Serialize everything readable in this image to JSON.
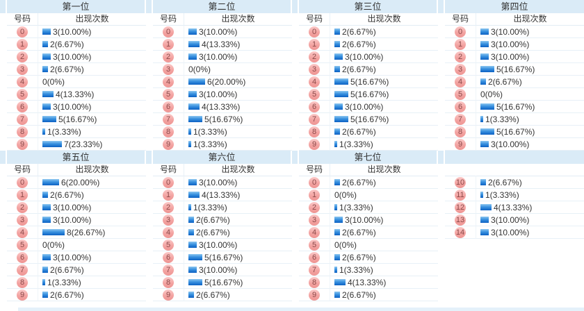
{
  "page": {
    "headers": {
      "number": "号码",
      "count": "出现次数"
    },
    "colors": {
      "band_blue": "#daebf7",
      "bar_blue": "#0b60c3",
      "ball_pink": "#f3a4a2",
      "ball_text": "#8c4a4a",
      "text": "#333333"
    },
    "sections": [
      {
        "id": "1",
        "title": "第一位",
        "show_headers": true,
        "rows": [
          {
            "n": "0",
            "v": 3,
            "t": "3(10.00%)"
          },
          {
            "n": "1",
            "v": 2,
            "t": "2(6.67%)"
          },
          {
            "n": "2",
            "v": 3,
            "t": "3(10.00%)"
          },
          {
            "n": "3",
            "v": 2,
            "t": "2(6.67%)"
          },
          {
            "n": "4",
            "v": 0,
            "t": "0(0%)"
          },
          {
            "n": "5",
            "v": 4,
            "t": "4(13.33%)"
          },
          {
            "n": "6",
            "v": 3,
            "t": "3(10.00%)"
          },
          {
            "n": "7",
            "v": 5,
            "t": "5(16.67%)"
          },
          {
            "n": "8",
            "v": 1,
            "t": "1(3.33%)"
          },
          {
            "n": "9",
            "v": 7,
            "t": "7(23.33%)"
          }
        ]
      },
      {
        "id": "2",
        "title": "第二位",
        "show_headers": true,
        "rows": [
          {
            "n": "0",
            "v": 3,
            "t": "3(10.00%)"
          },
          {
            "n": "1",
            "v": 4,
            "t": "4(13.33%)"
          },
          {
            "n": "2",
            "v": 3,
            "t": "3(10.00%)"
          },
          {
            "n": "3",
            "v": 0,
            "t": "0(0%)"
          },
          {
            "n": "4",
            "v": 6,
            "t": "6(20.00%)"
          },
          {
            "n": "5",
            "v": 3,
            "t": "3(10.00%)"
          },
          {
            "n": "6",
            "v": 4,
            "t": "4(13.33%)"
          },
          {
            "n": "7",
            "v": 5,
            "t": "5(16.67%)"
          },
          {
            "n": "8",
            "v": 1,
            "t": "1(3.33%)"
          },
          {
            "n": "9",
            "v": 1,
            "t": "1(3.33%)"
          }
        ]
      },
      {
        "id": "3",
        "title": "第三位",
        "show_headers": true,
        "rows": [
          {
            "n": "0",
            "v": 2,
            "t": "2(6.67%)"
          },
          {
            "n": "1",
            "v": 2,
            "t": "2(6.67%)"
          },
          {
            "n": "2",
            "v": 3,
            "t": "3(10.00%)"
          },
          {
            "n": "3",
            "v": 2,
            "t": "2(6.67%)"
          },
          {
            "n": "4",
            "v": 5,
            "t": "5(16.67%)"
          },
          {
            "n": "5",
            "v": 5,
            "t": "5(16.67%)"
          },
          {
            "n": "6",
            "v": 3,
            "t": "3(10.00%)"
          },
          {
            "n": "7",
            "v": 5,
            "t": "5(16.67%)"
          },
          {
            "n": "8",
            "v": 2,
            "t": "2(6.67%)"
          },
          {
            "n": "9",
            "v": 1,
            "t": "1(3.33%)"
          }
        ]
      },
      {
        "id": "4",
        "title": "第四位",
        "show_headers": true,
        "rows": [
          {
            "n": "0",
            "v": 3,
            "t": "3(10.00%)"
          },
          {
            "n": "1",
            "v": 3,
            "t": "3(10.00%)"
          },
          {
            "n": "2",
            "v": 3,
            "t": "3(10.00%)"
          },
          {
            "n": "3",
            "v": 5,
            "t": "5(16.67%)"
          },
          {
            "n": "4",
            "v": 2,
            "t": "2(6.67%)"
          },
          {
            "n": "5",
            "v": 0,
            "t": "0(0%)"
          },
          {
            "n": "6",
            "v": 5,
            "t": "5(16.67%)"
          },
          {
            "n": "7",
            "v": 1,
            "t": "1(3.33%)"
          },
          {
            "n": "8",
            "v": 5,
            "t": "5(16.67%)"
          },
          {
            "n": "9",
            "v": 3,
            "t": "3(10.00%)"
          }
        ]
      },
      {
        "id": "5",
        "title": "第五位",
        "show_headers": true,
        "rows": [
          {
            "n": "0",
            "v": 6,
            "t": "6(20.00%)"
          },
          {
            "n": "1",
            "v": 2,
            "t": "2(6.67%)"
          },
          {
            "n": "2",
            "v": 3,
            "t": "3(10.00%)"
          },
          {
            "n": "3",
            "v": 3,
            "t": "3(10.00%)"
          },
          {
            "n": "4",
            "v": 8,
            "t": "8(26.67%)"
          },
          {
            "n": "5",
            "v": 0,
            "t": "0(0%)"
          },
          {
            "n": "6",
            "v": 3,
            "t": "3(10.00%)"
          },
          {
            "n": "7",
            "v": 2,
            "t": "2(6.67%)"
          },
          {
            "n": "8",
            "v": 1,
            "t": "1(3.33%)"
          },
          {
            "n": "9",
            "v": 2,
            "t": "2(6.67%)"
          }
        ]
      },
      {
        "id": "6",
        "title": "第六位",
        "show_headers": true,
        "rows": [
          {
            "n": "0",
            "v": 3,
            "t": "3(10.00%)"
          },
          {
            "n": "1",
            "v": 4,
            "t": "4(13.33%)"
          },
          {
            "n": "2",
            "v": 1,
            "t": "1(3.33%)"
          },
          {
            "n": "3",
            "v": 2,
            "t": "2(6.67%)"
          },
          {
            "n": "4",
            "v": 2,
            "t": "2(6.67%)"
          },
          {
            "n": "5",
            "v": 3,
            "t": "3(10.00%)"
          },
          {
            "n": "6",
            "v": 5,
            "t": "5(16.67%)"
          },
          {
            "n": "7",
            "v": 3,
            "t": "3(10.00%)"
          },
          {
            "n": "8",
            "v": 5,
            "t": "5(16.67%)"
          },
          {
            "n": "9",
            "v": 2,
            "t": "2(6.67%)"
          }
        ]
      },
      {
        "id": "7",
        "title": "第七位",
        "show_headers": true,
        "rows": [
          {
            "n": "0",
            "v": 2,
            "t": "2(6.67%)"
          },
          {
            "n": "1",
            "v": 0,
            "t": "0(0%)"
          },
          {
            "n": "2",
            "v": 1,
            "t": "1(3.33%)"
          },
          {
            "n": "3",
            "v": 3,
            "t": "3(10.00%)"
          },
          {
            "n": "4",
            "v": 2,
            "t": "2(6.67%)"
          },
          {
            "n": "5",
            "v": 0,
            "t": "0(0%)"
          },
          {
            "n": "6",
            "v": 2,
            "t": "2(6.67%)"
          },
          {
            "n": "7",
            "v": 1,
            "t": "1(3.33%)"
          },
          {
            "n": "8",
            "v": 4,
            "t": "4(13.33%)"
          },
          {
            "n": "9",
            "v": 2,
            "t": "2(6.67%)"
          }
        ]
      },
      {
        "id": "extra",
        "title": "",
        "show_headers": false,
        "rows": [
          {
            "n": "10",
            "v": 2,
            "t": "2(6.67%)"
          },
          {
            "n": "11",
            "v": 1,
            "t": "1(3.33%)"
          },
          {
            "n": "12",
            "v": 4,
            "t": "4(13.33%)"
          },
          {
            "n": "13",
            "v": 3,
            "t": "3(10.00%)"
          },
          {
            "n": "14",
            "v": 3,
            "t": "3(10.00%)"
          }
        ]
      }
    ]
  }
}
